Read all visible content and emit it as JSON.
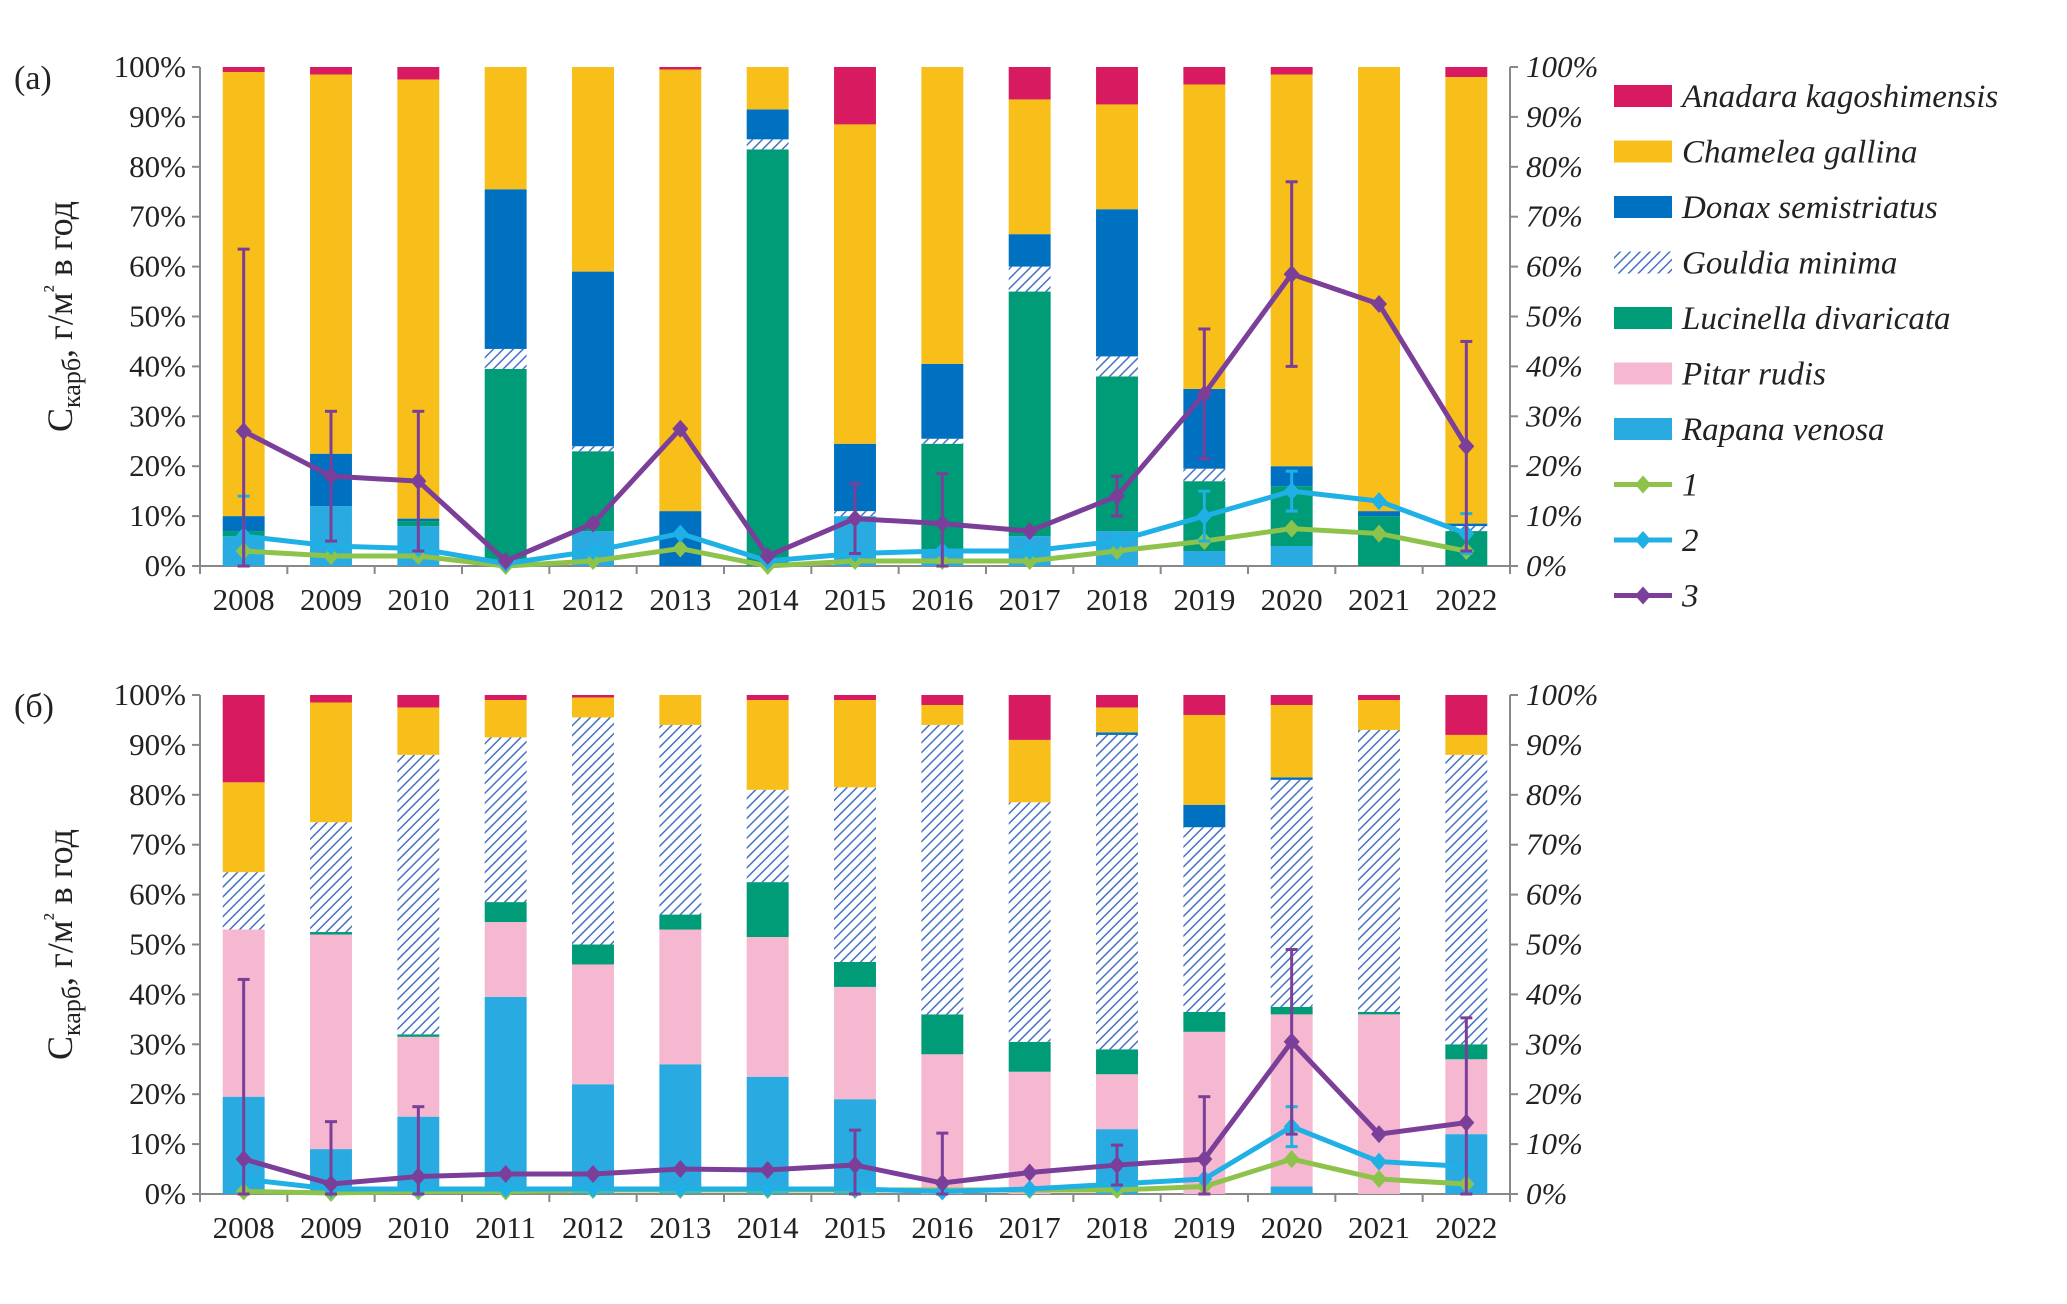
{
  "chart_data": [
    {
      "type": "bar",
      "stacked": true,
      "percent": true,
      "panel_label": "(а)",
      "ylabel": "Скарб, г/м² в год",
      "ylim": [
        0,
        100
      ],
      "yticks": [
        "0%",
        "10%",
        "20%",
        "30%",
        "40%",
        "50%",
        "60%",
        "70%",
        "80%",
        "90%",
        "100%"
      ],
      "categories": [
        "2008",
        "2009",
        "2010",
        "2011",
        "2012",
        "2013",
        "2014",
        "2015",
        "2016",
        "2017",
        "2018",
        "2019",
        "2020",
        "2021",
        "2022"
      ],
      "series": [
        {
          "name": "Rapana venosa",
          "color": "#29abe2",
          "values": [
            6,
            12,
            8,
            0,
            7,
            0,
            0,
            10,
            3,
            6,
            7,
            3,
            4,
            0,
            0
          ]
        },
        {
          "name": "Pitar rudis",
          "color": "#f5b8d0",
          "values": [
            0,
            0,
            0,
            0,
            0,
            0,
            0,
            0,
            0,
            0,
            0,
            0,
            0,
            0,
            0
          ]
        },
        {
          "name": "Lucinella divaricata",
          "color": "#009b77",
          "values": [
            1,
            0,
            1,
            39.5,
            16,
            0,
            83.5,
            0,
            21.5,
            49,
            31,
            14,
            12,
            10,
            7
          ]
        },
        {
          "name": "Gouldia minima",
          "color": "#4472c4",
          "pattern": "hatch",
          "values": [
            0,
            0,
            0,
            4,
            1,
            0,
            2,
            1,
            1,
            5,
            4,
            2.5,
            0,
            0,
            1
          ]
        },
        {
          "name": "Donax semistriatus",
          "color": "#0070c0",
          "values": [
            3,
            10.5,
            0.5,
            32,
            35,
            11,
            6,
            13.5,
            15,
            6.5,
            29.5,
            16,
            4,
            1,
            0.5
          ]
        },
        {
          "name": "Chamelea gallina",
          "color": "#f8bf1a",
          "values": [
            89,
            76,
            88,
            24.5,
            41,
            88.5,
            8.5,
            64,
            59.5,
            27,
            21,
            61,
            78.5,
            89,
            89.5
          ]
        },
        {
          "name": "Anadara kagoshimensis",
          "color": "#d81b60",
          "values": [
            1,
            1.5,
            2.5,
            0,
            0,
            0.5,
            0,
            11.5,
            0,
            6.5,
            7.5,
            3.5,
            1.5,
            0,
            2
          ]
        }
      ],
      "lines": [
        {
          "name": "1",
          "color": "#8dc34a",
          "values": [
            3,
            2,
            2,
            0,
            1,
            3.5,
            0,
            1,
            1,
            1,
            3,
            5,
            7.5,
            6.5,
            3
          ],
          "errors": [
            0,
            0,
            0,
            0,
            0,
            0,
            0,
            0,
            0,
            0,
            0,
            0,
            0,
            0,
            0
          ]
        },
        {
          "name": "2",
          "color": "#1fb0e5",
          "values": [
            6,
            4,
            3.5,
            0.5,
            3,
            6.5,
            1,
            2.5,
            3,
            3,
            5,
            10,
            15,
            13,
            6.5
          ],
          "errors": [
            8,
            0,
            0,
            0,
            0,
            0,
            0,
            0,
            0,
            0,
            0,
            5,
            4,
            0,
            4
          ]
        },
        {
          "name": "3",
          "color": "#7b3f99",
          "values": [
            27,
            18,
            17,
            1,
            8.5,
            27.5,
            2,
            9.5,
            8.5,
            7,
            14,
            34.5,
            58.5,
            52.5,
            24
          ],
          "errors": [
            36.5,
            13,
            14,
            0,
            0,
            0,
            0,
            7,
            10,
            0,
            4,
            13,
            18.5,
            0,
            21
          ]
        }
      ]
    },
    {
      "type": "bar",
      "stacked": true,
      "percent": true,
      "panel_label": "(б)",
      "ylabel": "Скарб, г/м² в год",
      "ylim": [
        0,
        100
      ],
      "yticks": [
        "0%",
        "10%",
        "20%",
        "30%",
        "40%",
        "50%",
        "60%",
        "70%",
        "80%",
        "90%",
        "100%"
      ],
      "categories": [
        "2008",
        "2009",
        "2010",
        "2011",
        "2012",
        "2013",
        "2014",
        "2015",
        "2016",
        "2017",
        "2018",
        "2019",
        "2020",
        "2021",
        "2022"
      ],
      "series": [
        {
          "name": "Rapana venosa",
          "color": "#29abe2",
          "values": [
            19.5,
            9,
            15.5,
            39.5,
            22,
            26,
            23.5,
            19,
            0,
            0,
            13,
            0,
            1.5,
            0,
            12
          ]
        },
        {
          "name": "Pitar rudis",
          "color": "#f5b8d0",
          "values": [
            33.5,
            43,
            16,
            15,
            24,
            27,
            28,
            22.5,
            28,
            24.5,
            11,
            32.5,
            34.5,
            36,
            15
          ]
        },
        {
          "name": "Lucinella divaricata",
          "color": "#009b77",
          "values": [
            0,
            0.5,
            0.5,
            4,
            4,
            3,
            11,
            5,
            8,
            6,
            5,
            4,
            1.5,
            0.5,
            3
          ]
        },
        {
          "name": "Gouldia minima",
          "color": "#4472c4",
          "pattern": "hatch",
          "values": [
            11.5,
            22,
            56,
            33,
            45.5,
            38,
            18.5,
            35,
            58,
            48,
            63,
            37,
            45.5,
            56.5,
            58
          ]
        },
        {
          "name": "Donax semistriatus",
          "color": "#0070c0",
          "values": [
            0,
            0,
            0,
            0,
            0,
            0,
            0,
            0,
            0,
            0,
            0.5,
            4.5,
            0.5,
            0,
            0
          ]
        },
        {
          "name": "Chamelea gallina",
          "color": "#f8bf1a",
          "values": [
            18,
            24,
            9.5,
            7.5,
            4,
            6,
            18,
            17.5,
            4,
            12.5,
            5,
            18,
            14.5,
            6,
            4
          ]
        },
        {
          "name": "Anadara kagoshimensis",
          "color": "#d81b60",
          "values": [
            17.5,
            1.5,
            2.5,
            1,
            0.5,
            0,
            1,
            1,
            2,
            9,
            2.5,
            4,
            2,
            1,
            8
          ]
        }
      ],
      "lines": [
        {
          "name": "1",
          "color": "#8dc34a",
          "values": [
            0.5,
            0.2,
            0.5,
            0.5,
            0.8,
            0.8,
            0.8,
            0.8,
            0.8,
            0.8,
            0.8,
            1.5,
            7,
            3,
            2
          ],
          "errors": [
            0,
            0,
            0,
            0,
            0,
            0,
            0,
            0,
            0,
            0,
            0,
            0,
            0,
            0,
            0
          ]
        },
        {
          "name": "2",
          "color": "#1fb0e5",
          "values": [
            3,
            1,
            1,
            1,
            1,
            1,
            1,
            1,
            0.5,
            1,
            2,
            3,
            13.5,
            6.5,
            5.5
          ],
          "errors": [
            0,
            0,
            0,
            0,
            0,
            0,
            0,
            0,
            0,
            0,
            0,
            0,
            4,
            0,
            0
          ]
        },
        {
          "name": "3",
          "color": "#7b3f99",
          "values": [
            7,
            2,
            3.5,
            4,
            4,
            5,
            4.8,
            5.8,
            2.2,
            4.3,
            5.8,
            7,
            30.5,
            12,
            14.3
          ],
          "errors": [
            36,
            12.5,
            14,
            0,
            0,
            0,
            0,
            7,
            10,
            0,
            4,
            12.5,
            18.5,
            0,
            21
          ]
        }
      ]
    }
  ],
  "legend": {
    "placement": "right",
    "items": [
      {
        "label": "Anadara kagoshimensis",
        "kind": "swatch",
        "color": "#d81b60"
      },
      {
        "label": "Chamelea gallina",
        "kind": "swatch",
        "color": "#f8bf1a"
      },
      {
        "label": "Donax semistriatus",
        "kind": "swatch",
        "color": "#0070c0"
      },
      {
        "label": "Gouldia minima",
        "kind": "hatch",
        "color": "#4472c4"
      },
      {
        "label": "Lucinella divaricata",
        "kind": "swatch",
        "color": "#009b77"
      },
      {
        "label": "Pitar rudis",
        "kind": "swatch",
        "color": "#f5b8d0"
      },
      {
        "label": "Rapana venosa",
        "kind": "swatch",
        "color": "#29abe2"
      },
      {
        "label": "1",
        "kind": "line",
        "color": "#8dc34a"
      },
      {
        "label": "2",
        "kind": "line",
        "color": "#1fb0e5"
      },
      {
        "label": "3",
        "kind": "line",
        "color": "#7b3f99"
      }
    ]
  }
}
